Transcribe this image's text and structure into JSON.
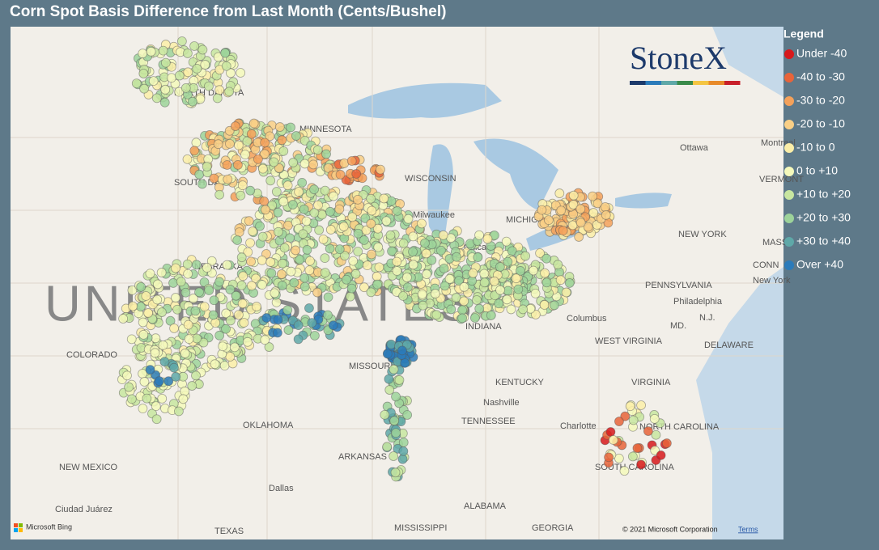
{
  "title": "Corn Spot Basis Difference from Last Month (Cents/Bushel)",
  "legend": {
    "title": "Legend",
    "items": [
      {
        "label": "Under -40",
        "color": "#d7191c"
      },
      {
        "label": "-40 to -30",
        "color": "#e8643a"
      },
      {
        "label": "-30 to -20",
        "color": "#f4a15a"
      },
      {
        "label": "-20 to -10",
        "color": "#f9cf86"
      },
      {
        "label": "-10 to 0",
        "color": "#fbeea8"
      },
      {
        "label": "0 to +10",
        "color": "#f5f9bb"
      },
      {
        "label": "+10 to +20",
        "color": "#c8e6a0"
      },
      {
        "label": "+20 to +30",
        "color": "#9dd39a"
      },
      {
        "label": "+30 to +40",
        "color": "#5fa8a8"
      },
      {
        "label": "Over +40",
        "color": "#2b7bba"
      }
    ]
  },
  "logo": "StoneX",
  "map_labels": [
    "UNITED STATES",
    "NORTH DAKOTA",
    "MINNESOTA",
    "SOUTH DAKOTA",
    "WISCONSIN",
    "NEBRASKA",
    "MICHIGAN",
    "Milwaukee",
    "Chicago",
    "NEW YORK",
    "PENNSYLVANIA",
    "Philadelphia",
    "New York",
    "Ottawa",
    "Montreal",
    "VERMONT",
    "COLORADO",
    "MISSOURI",
    "KENTUCKY",
    "WEST VIRGINIA",
    "VIRGINIA",
    "NORTH CAROLINA",
    "Charlotte",
    "Nashville",
    "TENNESSEE",
    "OKLAHOMA",
    "ARKANSAS",
    "NEW MEXICO",
    "Dallas",
    "Ciudad Juárez",
    "ALABAMA",
    "MISSISSIPPI",
    "GEORGIA",
    "TEXAS",
    "SOUTH CAROLINA",
    "Columbus",
    "INDIANA",
    "DELAWARE",
    "MD.",
    "N.J.",
    "CONN",
    "MASS."
  ],
  "attribution": {
    "provider": "Microsoft Bing",
    "copyright": "© 2021 Microsoft Corporation",
    "terms": "Terms"
  }
}
